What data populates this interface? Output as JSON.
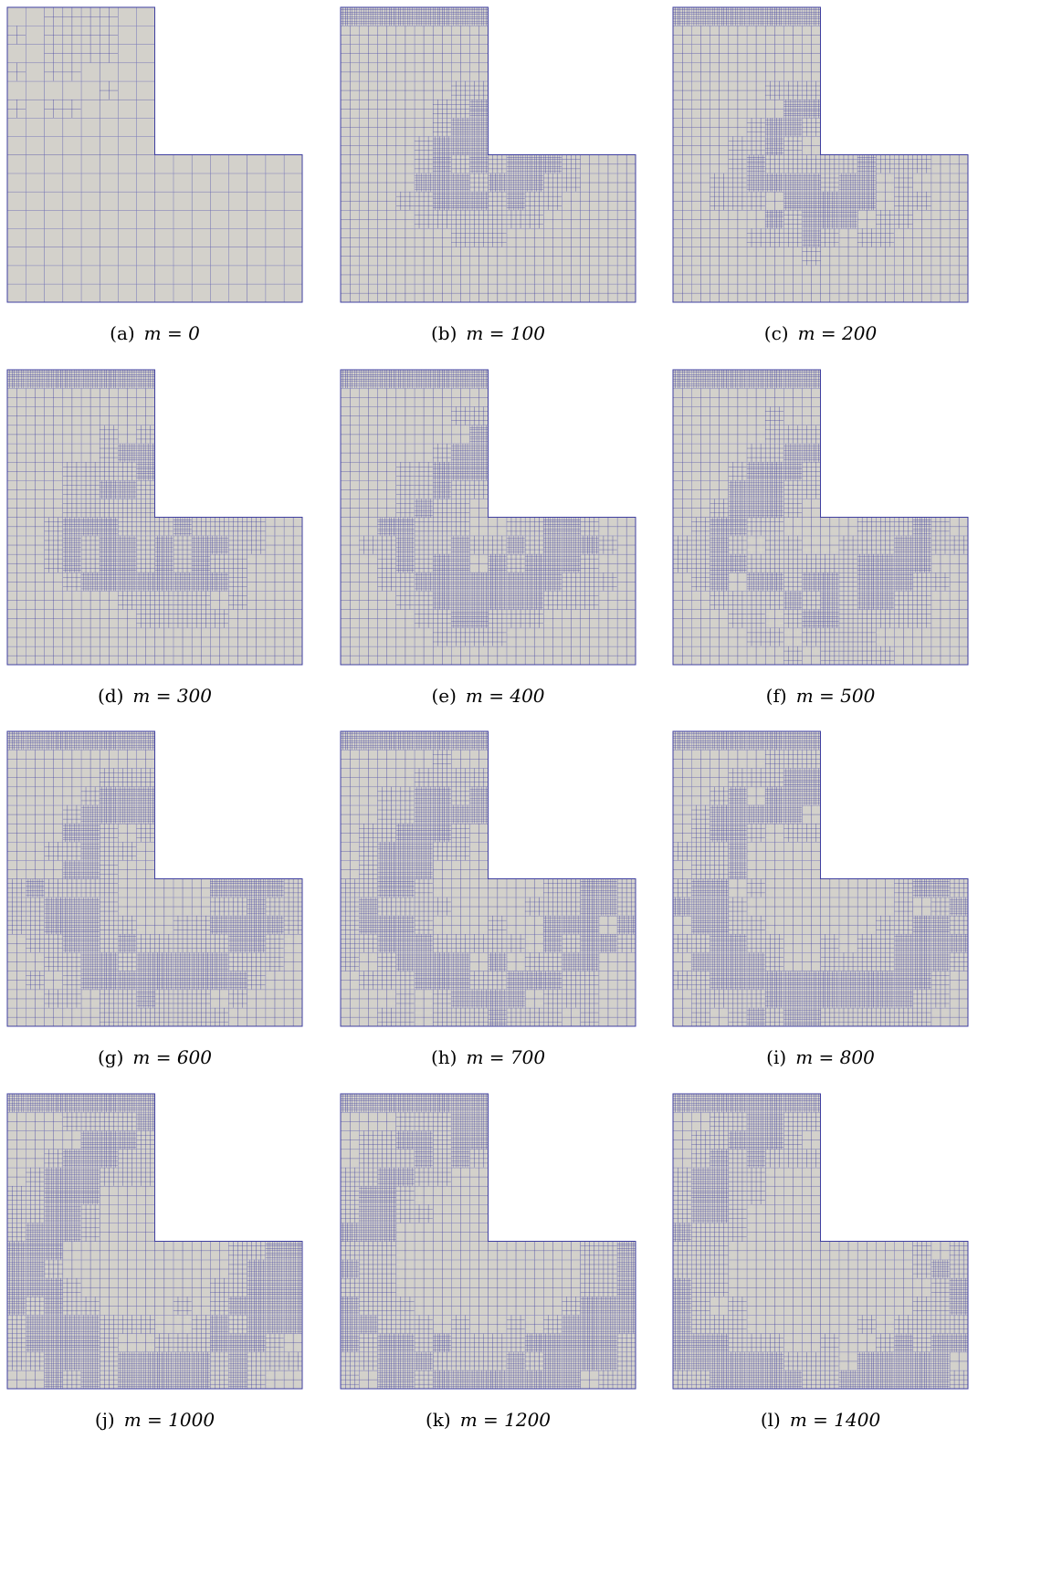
{
  "figure": {
    "panels": [
      {
        "tag": "(a)",
        "caption": "m = 0"
      },
      {
        "tag": "(b)",
        "caption": "m = 100"
      },
      {
        "tag": "(c)",
        "caption": "m = 200"
      },
      {
        "tag": "(d)",
        "caption": "m = 300"
      },
      {
        "tag": "(e)",
        "caption": "m = 400"
      },
      {
        "tag": "(f)",
        "caption": "m = 500"
      },
      {
        "tag": "(g)",
        "caption": "m = 600"
      },
      {
        "tag": "(h)",
        "caption": "m = 700"
      },
      {
        "tag": "(i)",
        "caption": "m = 800"
      },
      {
        "tag": "(j)",
        "caption": "m = 1000"
      },
      {
        "tag": "(k)",
        "caption": "m = 1200"
      },
      {
        "tag": "(l)",
        "caption": "m = 1400"
      }
    ]
  }
}
